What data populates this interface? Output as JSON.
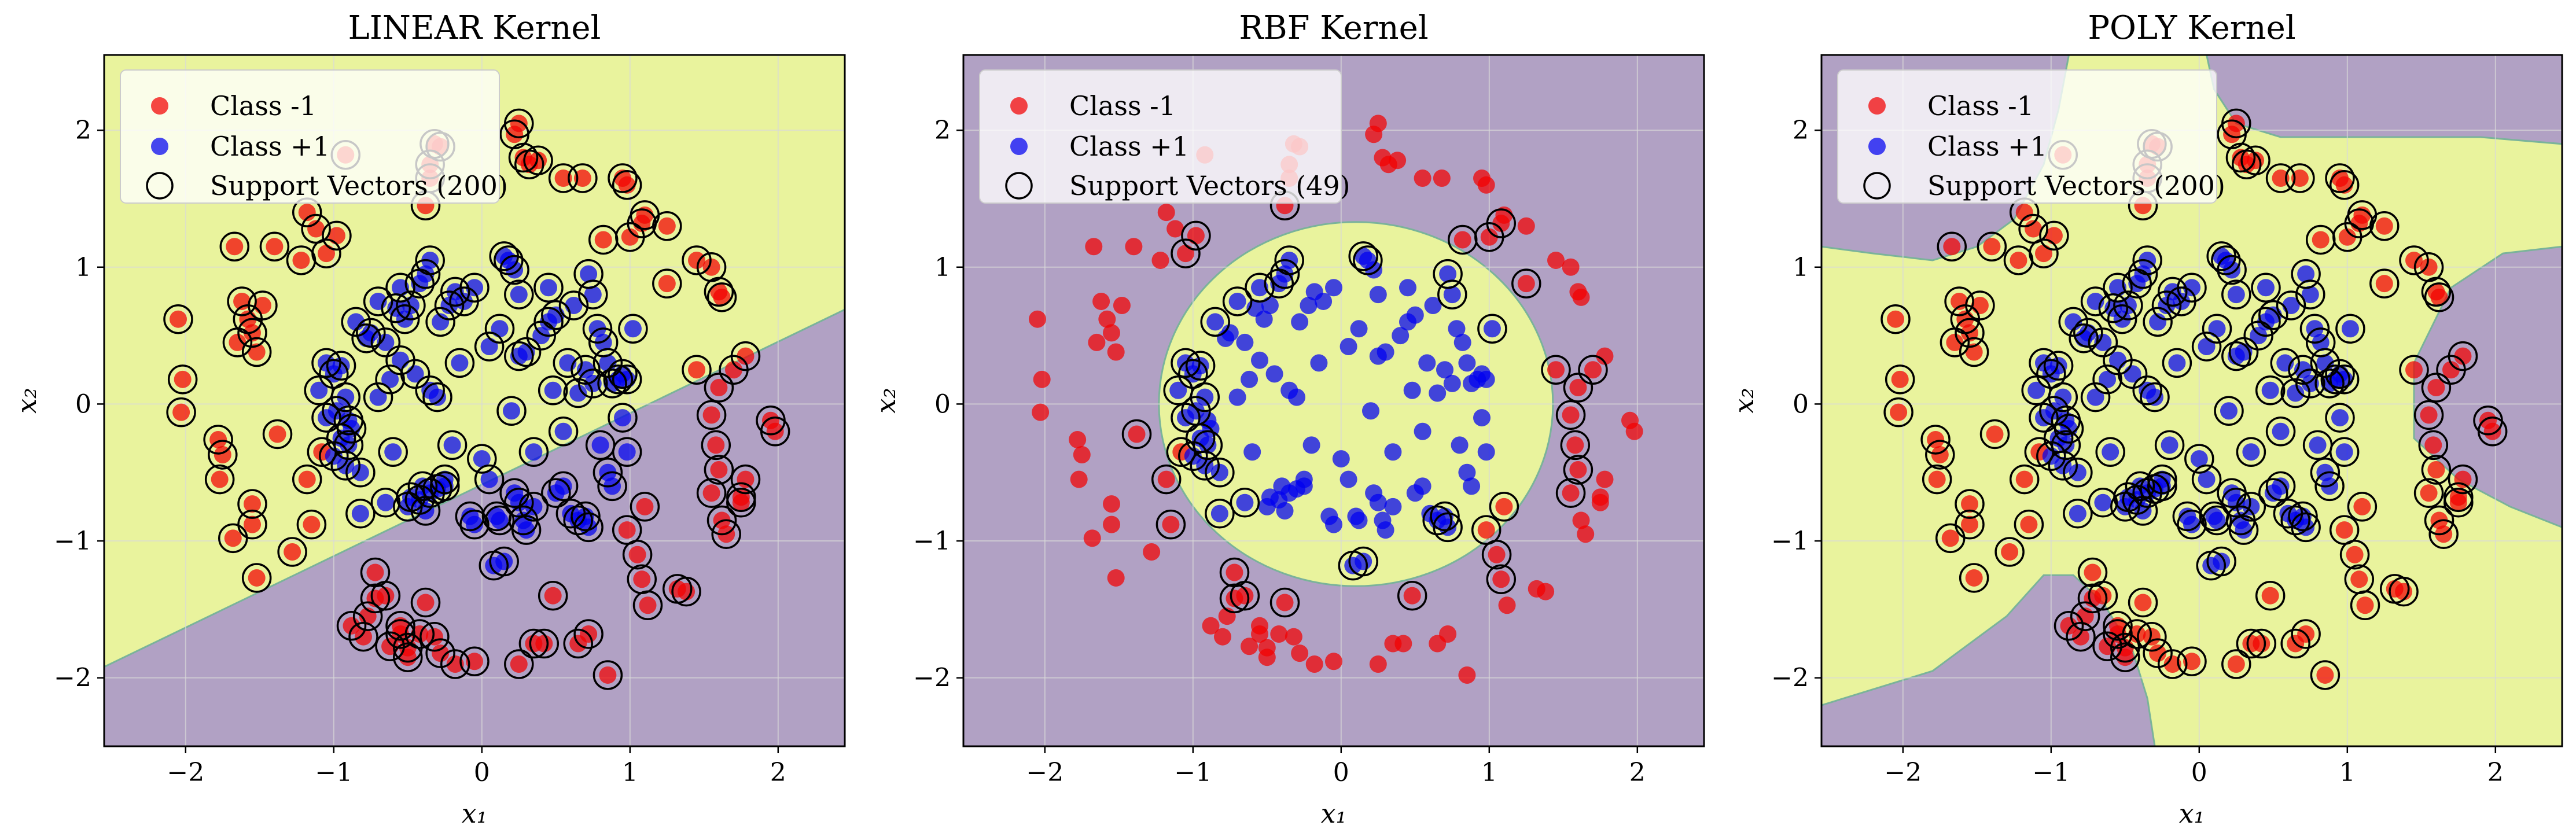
{
  "colors": {
    "region_positive": "#e9f39d",
    "region_negative": "#b1a1c4",
    "class_neg": "#f20000",
    "class_pos": "#0000f0",
    "sv_edge": "#000000",
    "grid": "#d8d8d8",
    "boundary": "#7ab39a"
  },
  "legend": {
    "class_neg": "Class -1",
    "class_pos": "Class +1"
  },
  "chart_data": [
    {
      "type": "scatter",
      "title": "LINEAR Kernel",
      "xlabel": "x₁",
      "ylabel": "x₂",
      "xlim": [
        -2.55,
        2.45
      ],
      "ylim": [
        -2.5,
        2.55
      ],
      "xticks": [
        -2,
        -1,
        0,
        1,
        2
      ],
      "yticks": [
        -2,
        -1,
        0,
        1,
        2
      ],
      "tick_labels": [
        "−2",
        "−1",
        "0",
        "1",
        "2"
      ],
      "grid": true,
      "legend_position": "top-left",
      "support_vectors_label": "Support Vectors (200)",
      "decision_region": {
        "kind": "linear",
        "boundary_points": [
          [
            -2.55,
            -1.92
          ],
          [
            2.45,
            0.69
          ]
        ],
        "positive_side": "above"
      }
    },
    {
      "type": "scatter",
      "title": "RBF Kernel",
      "xlabel": "x₁",
      "ylabel": "x₂",
      "xlim": [
        -2.55,
        2.45
      ],
      "ylim": [
        -2.5,
        2.55
      ],
      "xticks": [
        -2,
        -1,
        0,
        1,
        2
      ],
      "yticks": [
        -2,
        -1,
        0,
        1,
        2
      ],
      "tick_labels": [
        "−2",
        "−1",
        "0",
        "1",
        "2"
      ],
      "grid": true,
      "legend_position": "top-left",
      "support_vectors_label": "Support Vectors (49)",
      "decision_region": {
        "kind": "circle",
        "center": [
          0.1,
          0.0
        ],
        "radius": 1.33,
        "positive_side": "inside"
      }
    },
    {
      "type": "scatter",
      "title": "POLY Kernel",
      "xlabel": "x₁",
      "ylabel": "x₂",
      "xlim": [
        -2.55,
        2.45
      ],
      "ylim": [
        -2.5,
        2.55
      ],
      "xticks": [
        -2,
        -1,
        0,
        1,
        2
      ],
      "yticks": [
        -2,
        -1,
        0,
        1,
        2
      ],
      "tick_labels": [
        "−2",
        "−1",
        "0",
        "1",
        "2"
      ],
      "grid": true,
      "legend_position": "top-left",
      "support_vectors_label": "Support Vectors (200)",
      "decision_region": {
        "kind": "polynomial",
        "positive_side": "center",
        "negative_lobes": [
          [
            [
              -2.55,
              1.15
            ],
            [
              -2.2,
              1.1
            ],
            [
              -1.8,
              1.05
            ],
            [
              -1.5,
              1.15
            ],
            [
              -1.25,
              1.35
            ],
            [
              -1.05,
              1.75
            ],
            [
              -0.95,
              2.15
            ],
            [
              -0.88,
              2.55
            ],
            [
              -2.55,
              2.55
            ]
          ],
          [
            [
              0.05,
              2.55
            ],
            [
              0.1,
              2.3
            ],
            [
              0.25,
              2.05
            ],
            [
              0.55,
              1.95
            ],
            [
              1.0,
              1.95
            ],
            [
              1.5,
              1.95
            ],
            [
              1.9,
              1.95
            ],
            [
              2.45,
              1.9
            ],
            [
              2.45,
              2.55
            ]
          ],
          [
            [
              2.45,
              1.15
            ],
            [
              2.05,
              1.1
            ],
            [
              1.7,
              0.85
            ],
            [
              1.45,
              0.3
            ],
            [
              1.45,
              -0.25
            ],
            [
              1.75,
              -0.55
            ],
            [
              2.1,
              -0.75
            ],
            [
              2.45,
              -0.9
            ]
          ],
          [
            [
              -2.55,
              -2.2
            ],
            [
              -1.8,
              -1.95
            ],
            [
              -1.3,
              -1.55
            ],
            [
              -1.05,
              -1.25
            ],
            [
              -0.85,
              -1.25
            ],
            [
              -0.65,
              -1.45
            ],
            [
              -0.45,
              -1.8
            ],
            [
              -0.35,
              -2.15
            ],
            [
              -0.3,
              -2.5
            ],
            [
              -2.55,
              -2.5
            ]
          ]
        ]
      }
    }
  ],
  "points": {
    "class_neg": [
      [
        -2.05,
        0.62
      ],
      [
        -2.02,
        0.18
      ],
      [
        -2.03,
        -0.06
      ],
      [
        -1.78,
        -0.26
      ],
      [
        -1.75,
        -0.37
      ],
      [
        -1.77,
        -0.55
      ],
      [
        -1.67,
        1.15
      ],
      [
        -1.65,
        0.45
      ],
      [
        -1.62,
        0.75
      ],
      [
        -1.58,
        0.62
      ],
      [
        -1.55,
        0.52
      ],
      [
        -1.52,
        0.38
      ],
      [
        -1.48,
        0.72
      ],
      [
        -1.55,
        -0.73
      ],
      [
        -1.55,
        -0.88
      ],
      [
        -1.52,
        -1.27
      ],
      [
        -1.68,
        -0.98
      ],
      [
        -1.4,
        1.15
      ],
      [
        -1.28,
        -1.08
      ],
      [
        -1.38,
        -0.22
      ],
      [
        -1.22,
        1.05
      ],
      [
        -1.18,
        1.4
      ],
      [
        -1.12,
        1.28
      ],
      [
        -1.05,
        1.1
      ],
      [
        -1.18,
        -0.55
      ],
      [
        -1.15,
        -0.88
      ],
      [
        -0.98,
        1.23
      ],
      [
        -0.92,
        1.82
      ],
      [
        -0.72,
        -1.23
      ],
      [
        -0.88,
        -1.62
      ],
      [
        -0.8,
        -1.7
      ],
      [
        -0.77,
        -1.55
      ],
      [
        -0.72,
        -1.42
      ],
      [
        -0.65,
        -1.4
      ],
      [
        -0.62,
        -1.77
      ],
      [
        -0.55,
        -1.62
      ],
      [
        -0.55,
        -1.68
      ],
      [
        -0.5,
        -1.78
      ],
      [
        -0.5,
        -1.85
      ],
      [
        -0.42,
        -1.68
      ],
      [
        -0.38,
        -1.45
      ],
      [
        -0.32,
        -1.7
      ],
      [
        -0.28,
        -1.82
      ],
      [
        -0.18,
        -1.9
      ],
      [
        -0.05,
        -1.88
      ],
      [
        0.25,
        -1.9
      ],
      [
        0.35,
        -1.75
      ],
      [
        0.42,
        -1.75
      ],
      [
        0.48,
        -1.4
      ],
      [
        0.65,
        -1.75
      ],
      [
        0.72,
        -1.68
      ],
      [
        0.85,
        -1.98
      ],
      [
        -0.38,
        1.45
      ],
      [
        -0.35,
        1.75
      ],
      [
        -0.35,
        1.65
      ],
      [
        -0.32,
        1.9
      ],
      [
        -0.28,
        1.88
      ],
      [
        0.22,
        1.97
      ],
      [
        0.25,
        2.05
      ],
      [
        0.28,
        1.8
      ],
      [
        0.32,
        1.75
      ],
      [
        0.38,
        1.78
      ],
      [
        0.55,
        1.65
      ],
      [
        0.68,
        1.65
      ],
      [
        0.82,
        1.2
      ],
      [
        0.95,
        1.65
      ],
      [
        0.98,
        1.6
      ],
      [
        1.0,
        1.22
      ],
      [
        1.08,
        1.32
      ],
      [
        1.1,
        1.38
      ],
      [
        1.25,
        1.3
      ],
      [
        1.25,
        0.88
      ],
      [
        1.45,
        1.05
      ],
      [
        1.45,
        0.25
      ],
      [
        1.55,
        1.0
      ],
      [
        1.6,
        0.82
      ],
      [
        1.62,
        0.78
      ],
      [
        1.78,
        0.35
      ],
      [
        1.7,
        0.25
      ],
      [
        1.6,
        0.12
      ],
      [
        1.55,
        -0.08
      ],
      [
        1.58,
        -0.3
      ],
      [
        1.6,
        -0.48
      ],
      [
        1.55,
        -0.65
      ],
      [
        1.62,
        -0.85
      ],
      [
        1.65,
        -0.95
      ],
      [
        1.75,
        -0.68
      ],
      [
        1.75,
        -0.72
      ],
      [
        1.78,
        -0.55
      ],
      [
        1.95,
        -0.12
      ],
      [
        1.98,
        -0.2
      ],
      [
        1.38,
        -1.37
      ],
      [
        1.32,
        -1.35
      ],
      [
        1.1,
        -0.75
      ],
      [
        1.05,
        -1.1
      ],
      [
        1.08,
        -1.28
      ],
      [
        1.12,
        -1.47
      ],
      [
        0.98,
        -0.92
      ],
      [
        -1.08,
        -0.35
      ]
    ],
    "class_pos": [
      [
        -1.1,
        0.1
      ],
      [
        -1.05,
        0.3
      ],
      [
        -1.0,
        0.22
      ],
      [
        -0.98,
        -0.05
      ],
      [
        -0.95,
        0.28
      ],
      [
        -0.92,
        0.05
      ],
      [
        -0.9,
        -0.12
      ],
      [
        -0.88,
        -0.18
      ],
      [
        -0.95,
        -0.25
      ],
      [
        -0.9,
        -0.3
      ],
      [
        -0.92,
        -0.45
      ],
      [
        -1.0,
        -0.38
      ],
      [
        -0.85,
        0.6
      ],
      [
        -0.78,
        0.48
      ],
      [
        -0.75,
        0.52
      ],
      [
        -0.7,
        0.75
      ],
      [
        -0.65,
        0.45
      ],
      [
        -0.58,
        0.7
      ],
      [
        -0.52,
        0.62
      ],
      [
        -0.48,
        0.72
      ],
      [
        -0.42,
        0.88
      ],
      [
        -0.38,
        0.95
      ],
      [
        -0.35,
        1.05
      ],
      [
        -0.28,
        0.6
      ],
      [
        -0.22,
        0.72
      ],
      [
        -0.18,
        0.82
      ],
      [
        -0.12,
        0.75
      ],
      [
        -0.05,
        0.85
      ],
      [
        0.15,
        1.08
      ],
      [
        0.18,
        1.05
      ],
      [
        0.22,
        0.98
      ],
      [
        0.25,
        0.8
      ],
      [
        0.3,
        0.38
      ],
      [
        0.45,
        0.6
      ],
      [
        0.5,
        0.65
      ],
      [
        0.58,
        0.3
      ],
      [
        0.65,
        0.08
      ],
      [
        0.72,
        0.95
      ],
      [
        0.75,
        0.8
      ],
      [
        0.78,
        0.55
      ],
      [
        0.82,
        0.45
      ],
      [
        0.85,
        0.3
      ],
      [
        0.88,
        0.15
      ],
      [
        0.92,
        0.18
      ],
      [
        0.95,
        0.22
      ],
      [
        0.98,
        0.18
      ],
      [
        0.48,
        0.1
      ],
      [
        0.7,
        0.25
      ],
      [
        0.75,
        0.15
      ],
      [
        -0.82,
        -0.5
      ],
      [
        -0.82,
        -0.8
      ],
      [
        -0.65,
        -0.72
      ],
      [
        -0.5,
        -0.75
      ],
      [
        -0.48,
        -0.68
      ],
      [
        -0.4,
        -0.6
      ],
      [
        -0.35,
        -0.65
      ],
      [
        -0.3,
        -0.62
      ],
      [
        -0.42,
        -0.7
      ],
      [
        -0.38,
        -0.78
      ],
      [
        -0.25,
        -0.6
      ],
      [
        -0.08,
        -0.82
      ],
      [
        -0.05,
        -0.88
      ],
      [
        0.05,
        -0.55
      ],
      [
        0.1,
        -0.82
      ],
      [
        0.12,
        -0.85
      ],
      [
        0.15,
        -1.15
      ],
      [
        0.08,
        -1.18
      ],
      [
        0.22,
        -0.65
      ],
      [
        0.25,
        -0.72
      ],
      [
        0.28,
        -0.85
      ],
      [
        0.3,
        -0.92
      ],
      [
        0.35,
        -0.75
      ],
      [
        0.5,
        -0.65
      ],
      [
        0.55,
        -0.6
      ],
      [
        0.6,
        -0.8
      ],
      [
        0.65,
        -0.85
      ],
      [
        0.7,
        -0.82
      ],
      [
        0.72,
        -0.9
      ],
      [
        0.85,
        -0.5
      ],
      [
        0.88,
        -0.6
      ],
      [
        0.98,
        -0.35
      ],
      [
        -0.35,
        0.1
      ],
      [
        -0.45,
        0.22
      ],
      [
        -0.55,
        0.32
      ],
      [
        -0.62,
        0.18
      ],
      [
        -0.7,
        0.05
      ],
      [
        0.05,
        0.42
      ],
      [
        0.12,
        0.55
      ],
      [
        0.2,
        -0.05
      ],
      [
        0.4,
        0.5
      ],
      [
        -0.3,
        0.05
      ],
      [
        0.25,
        0.35
      ],
      [
        0.62,
        0.72
      ],
      [
        -0.15,
        0.3
      ],
      [
        0.55,
        -0.2
      ],
      [
        0.35,
        -0.35
      ],
      [
        -0.2,
        -0.3
      ],
      [
        -0.6,
        -0.35
      ],
      [
        0.95,
        -0.1
      ],
      [
        -0.55,
        0.85
      ],
      [
        0.0,
        -0.4
      ],
      [
        0.45,
        0.85
      ],
      [
        -0.25,
        -0.55
      ],
      [
        0.8,
        -0.3
      ],
      [
        1.02,
        0.55
      ],
      [
        -1.05,
        -0.1
      ]
    ]
  }
}
